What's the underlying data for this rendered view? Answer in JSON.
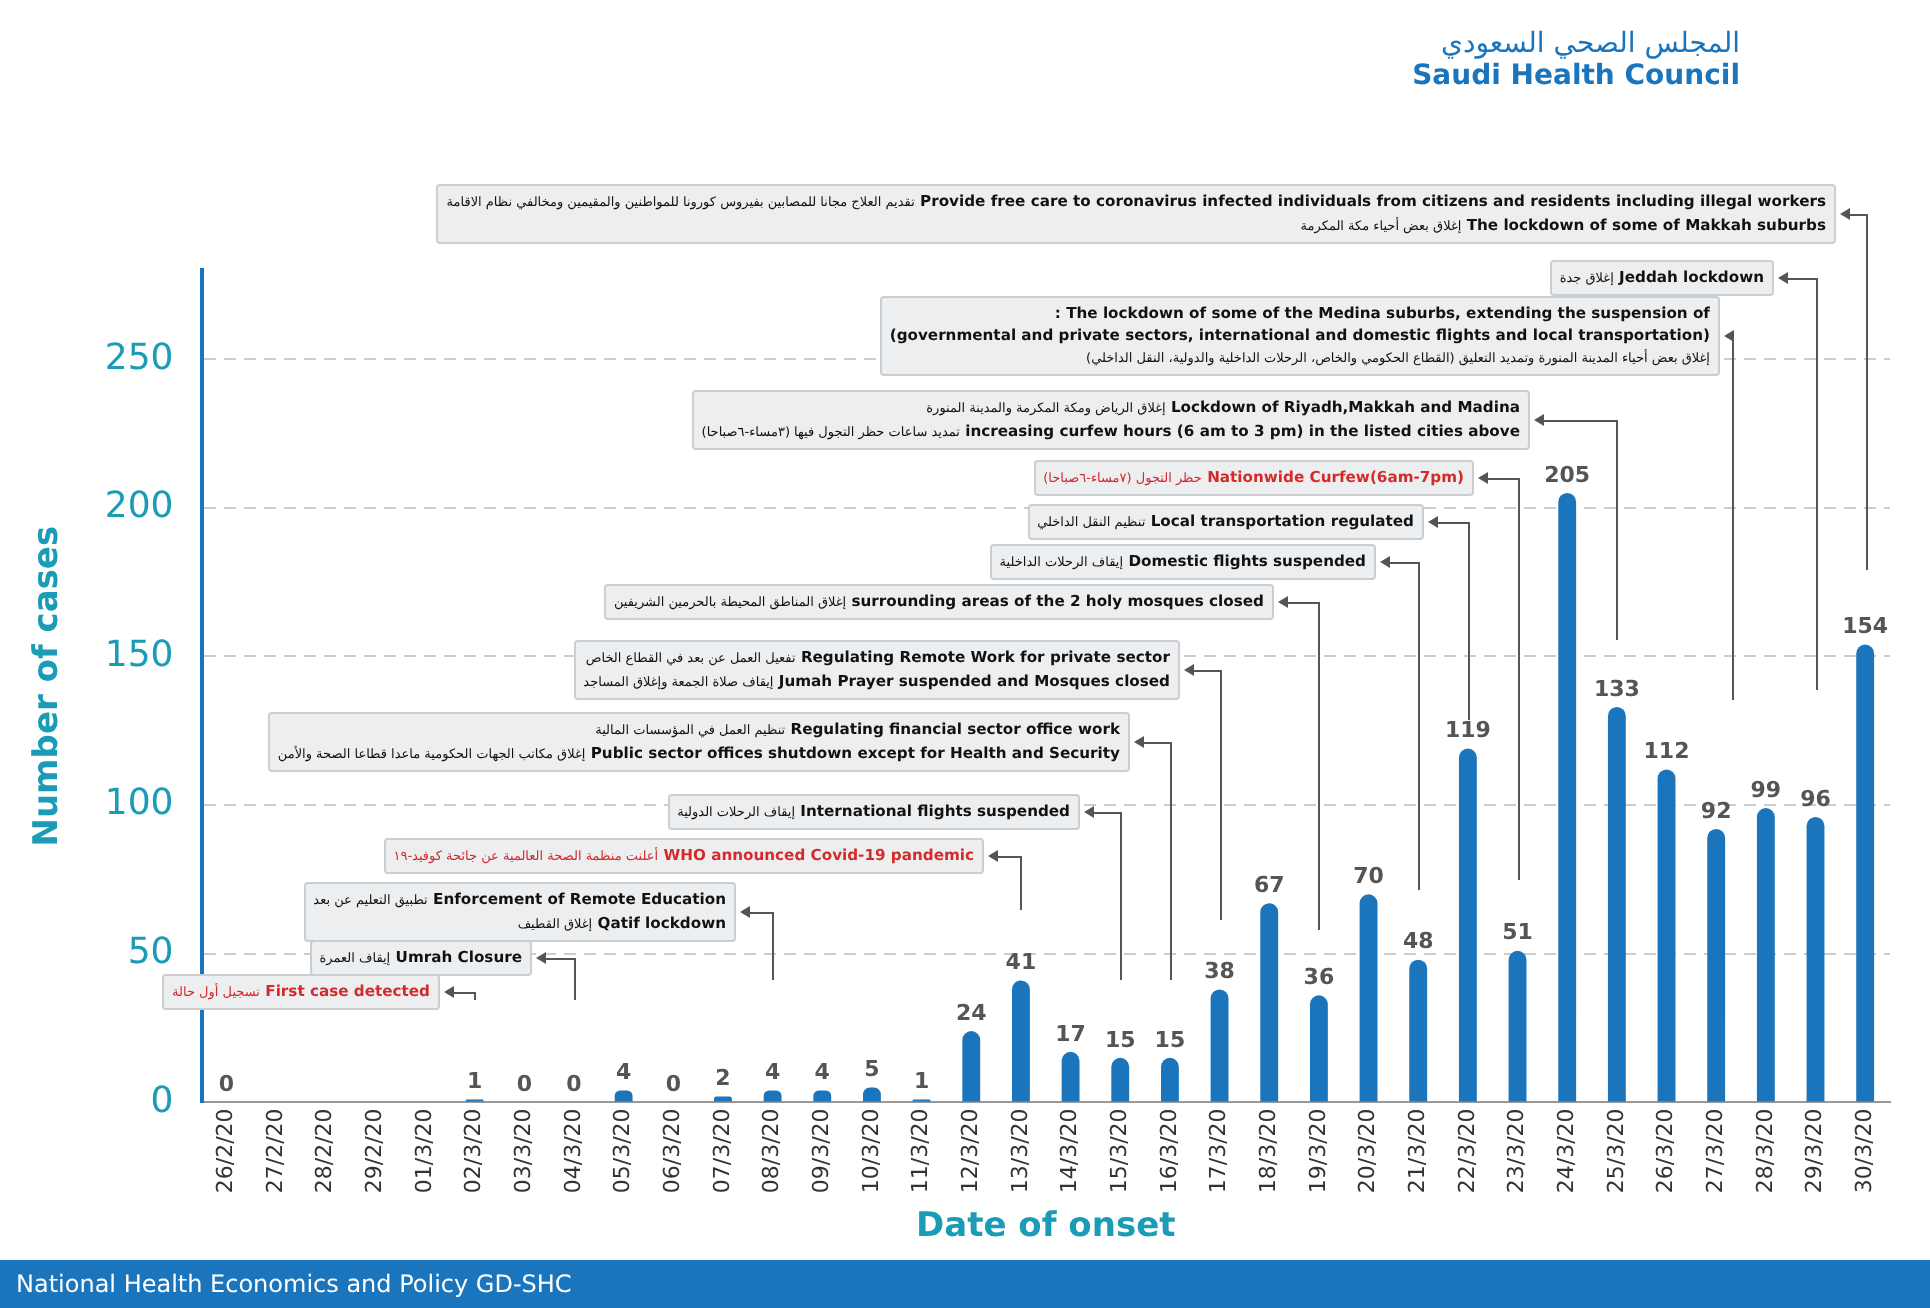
{
  "chart_data": {
    "type": "bar",
    "xlabel": "Date of onset",
    "ylabel": "Number of cases",
    "categories": [
      "26/2/20",
      "27/2/20",
      "28/2/20",
      "29/2/20",
      "01/3/20",
      "02/3/20",
      "03/3/20",
      "04/3/20",
      "05/3/20",
      "06/3/20",
      "07/3/20",
      "08/3/20",
      "09/3/20",
      "10/3/20",
      "11/3/20",
      "12/3/20",
      "13/3/20",
      "14/3/20",
      "15/3/20",
      "16/3/20",
      "17/3/20",
      "18/3/20",
      "19/3/20",
      "20/3/20",
      "21/3/20",
      "22/3/20",
      "23/3/20",
      "24/3/20",
      "25/3/20",
      "26/3/20",
      "27/3/20",
      "28/3/20",
      "29/3/20",
      "30/3/20"
    ],
    "values": [
      0,
      null,
      null,
      null,
      null,
      1,
      0,
      0,
      4,
      0,
      2,
      4,
      4,
      5,
      1,
      24,
      41,
      17,
      15,
      15,
      38,
      67,
      36,
      70,
      48,
      119,
      51,
      205,
      133,
      112,
      92,
      99,
      96,
      154
    ],
    "color": "#1b75bc",
    "data_labels": true,
    "ylim": [
      0,
      280
    ],
    "yticks": [
      0,
      50,
      100,
      150,
      200,
      250
    ],
    "grid": "y",
    "annotations": [
      "First case detected تسجيل أول حالة",
      "Umrah Closure إيقاف العمرة",
      "Enforcement of Remote Education تطبيق التعليم عن بعد\nQatif lockdown إغلاق القطيف",
      "WHO announced Covid-19 pandemic أعلنت منظمة الصحة العالمية عن جائحة كوفيد-١٩",
      "International flights suspended إيقاف الرحلات الدولية",
      "Regulating financial sector office work تنظيم العمل في المؤسسات المالية\nPublic sector offices shutdown except for Health and Security إغلاق مكاتب الجهات الحكومية ماعدا قطاعا الصحة والأمن",
      "Regulating Remote Work for private sector تفعيل العمل عن بعد في القطاع الخاص\nJumah Prayer suspended and Mosques closed إيقاف صلاة الجمعة وإغلاق المساجد",
      "surrounding areas of the 2 holy mosques closed إغلاق المناطق المحيطة بالحرمين الشريفين",
      "Domestic flights suspended إيقاف الرحلات الداخلية",
      "Local transportation regulated تنظيم النقل الداخلي",
      "Nationwide Curfew(6am-7pm) حظر التجول (٧مساء-٦صباحا)",
      "Lockdown of Riyadh,Makkah and Madina إغلاق الرياض ومكة المكرمة والمدينة المنورة\nincreasing curfew hours (6 am to 3 pm) in the listed cities above تمديد ساعات حظر التجول فيها (٣مساء-٦صباحا)",
      "The lockdown of some of the Medina suburbs, extending the suspension of :\n(governmental and private sectors, international and domestic flights and local transportation)\nإغلاق بعض أحياء المدينة المنورة وتمديد التعليق (القطاع الحكومي والخاص، الرحلات الداخلية والدولية، النقل الداخلي)",
      "Jeddah lockdown إغلاق جدة",
      "Provide free care to coronavirus infected individuals from citizens and residents including illegal workers تقديم العلاج مجانا للمصابين بفيروس كورونا للمواطنين والمقيمين ومخالفي نظام الاقامة\nThe lockdown of some of Makkah suburbs إغلاق بعض أحياء مكة المكرمة",
      "المجلس الصحي السعودي",
      "Saudi Health Council",
      "National Health Economics and Policy GD-SHC"
    ]
  }
}
